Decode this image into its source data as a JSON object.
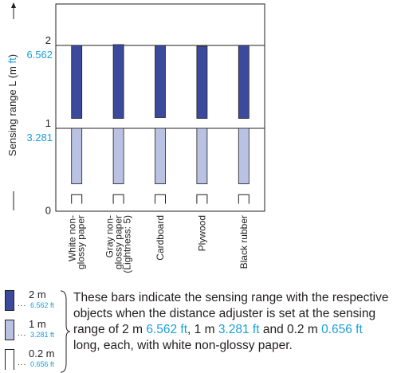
{
  "colors": {
    "dark_bar": "#3b4a9c",
    "light_bar": "#b9c2e3",
    "axis": "#231f20",
    "feet_text": "#1aa0d8"
  },
  "chart_data": {
    "type": "bar",
    "ylabel_prefix": "Sensing range L (m ",
    "ylabel_unit": "ft",
    "ylabel_suffix": ")",
    "ylim": [
      0,
      2.5
    ],
    "yticks": [
      {
        "value": 0,
        "m": "0",
        "ft": ""
      },
      {
        "value": 1,
        "m": "1",
        "ft": "3.281"
      },
      {
        "value": 2,
        "m": "2",
        "ft": "6.562"
      }
    ],
    "categories": [
      [
        "White non-",
        "glossy paper"
      ],
      [
        "Gray non-",
        "glossy paper",
        "(Lightness: 5)"
      ],
      [
        "Cardboard"
      ],
      [
        "Plywood"
      ],
      [
        "Black rubber"
      ]
    ],
    "series": [
      {
        "setting": "2 m",
        "ranges": [
          [
            1.12,
            2.0
          ],
          [
            1.12,
            2.01
          ],
          [
            1.13,
            2.0
          ],
          [
            1.12,
            1.99
          ],
          [
            1.12,
            2.0
          ]
        ]
      },
      {
        "setting": "1 m",
        "ranges": [
          [
            0.33,
            1.0
          ],
          [
            0.33,
            1.0
          ],
          [
            0.33,
            1.0
          ],
          [
            0.33,
            1.0
          ],
          [
            0.33,
            1.0
          ]
        ]
      },
      {
        "setting": "0.2 m",
        "ranges": [
          [
            0.09,
            0.2
          ],
          [
            0.09,
            0.2
          ],
          [
            0.09,
            0.2
          ],
          [
            0.09,
            0.2
          ],
          [
            0.09,
            0.2
          ]
        ]
      }
    ]
  },
  "legend": [
    {
      "m": "2 m",
      "ft": "6.562 ft",
      "style": "dark"
    },
    {
      "m": "1 m",
      "ft": "3.281 ft",
      "style": "light"
    },
    {
      "m": "0.2 m",
      "ft": "0.656 ft",
      "style": "open"
    }
  ],
  "note": {
    "p1": "These bars indicate the sensing range with the respective objects when the distance adjuster is set at the sensing range of 2 m ",
    "ft1": "6.562 ft",
    "p2": ", 1 m ",
    "ft2": "3.281 ft",
    "p3": " and 0.2 m ",
    "ft3": "0.656 ft",
    "p4": " long, each, with white non-glossy paper."
  }
}
